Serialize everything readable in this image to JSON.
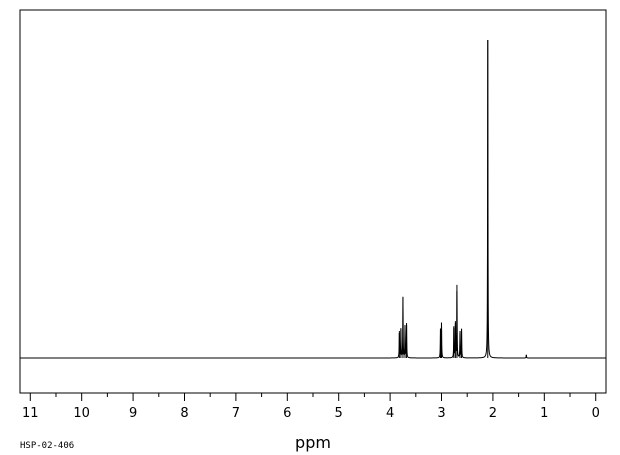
{
  "chart_data": {
    "type": "line",
    "xlabel": "ppm",
    "sample_code": "HSP-02-406",
    "x_range": [
      11.2,
      -0.2
    ],
    "y_range": [
      -0.1,
      1.0
    ],
    "reversed_x_axis": true,
    "major_ticks": [
      11,
      10,
      9,
      8,
      7,
      6,
      5,
      4,
      3,
      2,
      1,
      0
    ],
    "tick_labels": [
      "11",
      "10",
      "9",
      "8",
      "7",
      "6",
      "5",
      "4",
      "3",
      "2",
      "1",
      "0"
    ],
    "minor_tick_step": 0.5,
    "line_color": "#000000",
    "peaks": [
      {
        "ppm": 3.82,
        "height": 0.085
      },
      {
        "ppm": 3.79,
        "height": 0.09
      },
      {
        "ppm": 3.75,
        "height": 0.19
      },
      {
        "ppm": 3.71,
        "height": 0.1
      },
      {
        "ppm": 3.68,
        "height": 0.11
      },
      {
        "ppm": 3.02,
        "height": 0.09
      },
      {
        "ppm": 3.0,
        "height": 0.11
      },
      {
        "ppm": 2.76,
        "height": 0.1
      },
      {
        "ppm": 2.73,
        "height": 0.11
      },
      {
        "ppm": 2.7,
        "height": 0.23
      },
      {
        "ppm": 2.64,
        "height": 0.085
      },
      {
        "ppm": 2.61,
        "height": 0.09
      },
      {
        "ppm": 2.1,
        "height": 1.0
      },
      {
        "ppm": 1.35,
        "height": 0.01
      }
    ]
  }
}
